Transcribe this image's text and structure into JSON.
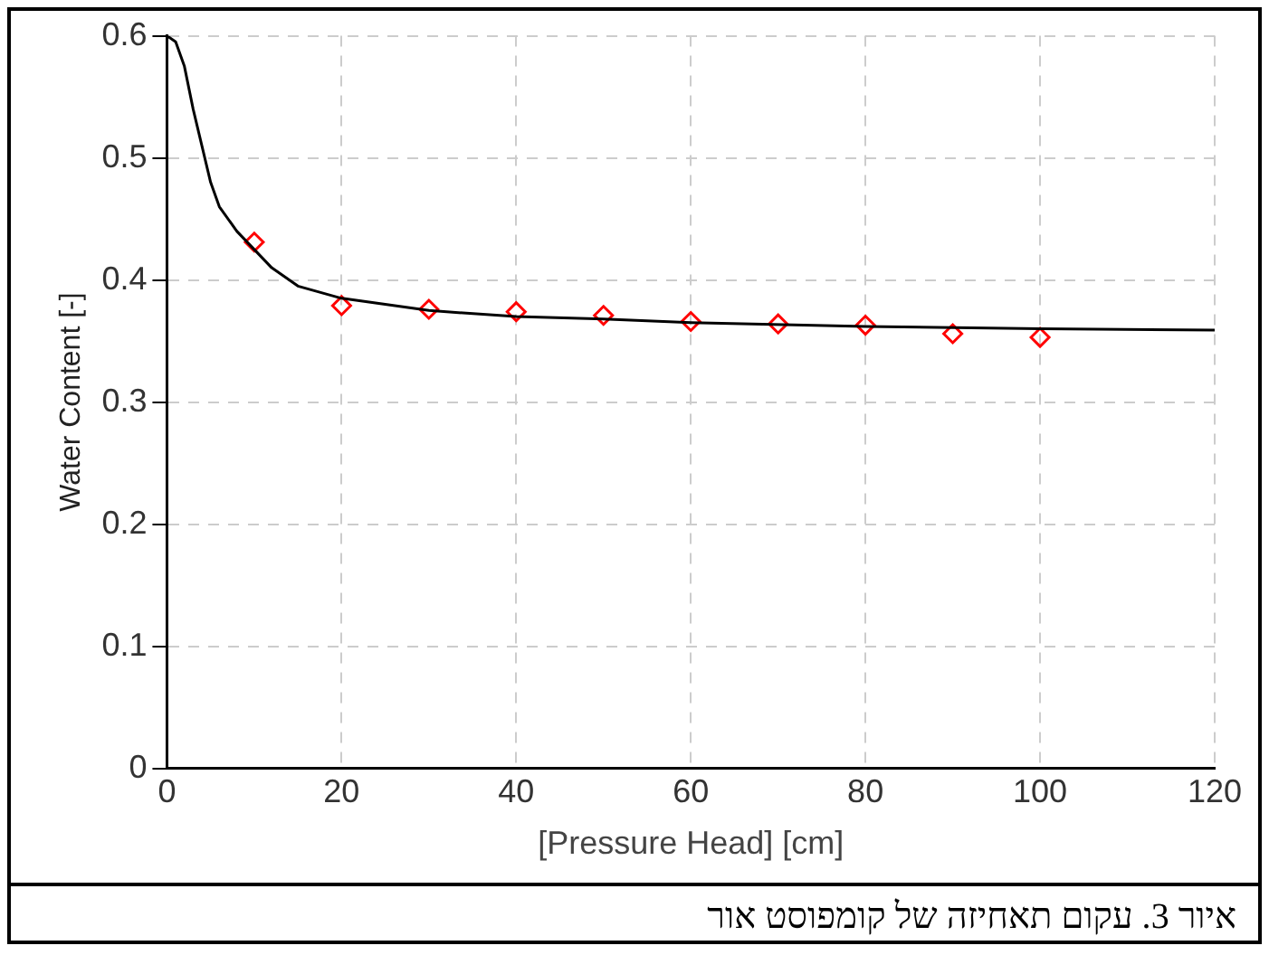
{
  "chart_data": {
    "type": "line",
    "xlabel": "[Pressure Head] [cm]",
    "ylabel": "Water Content [-]",
    "xlim": [
      0,
      120
    ],
    "xticks": [
      0,
      20,
      40,
      60,
      80,
      100,
      120
    ],
    "ylim": [
      0,
      0.6
    ],
    "yticks": [
      0,
      0.1,
      0.2,
      0.3,
      0.4,
      0.5,
      0.6
    ],
    "grid": true,
    "series": [
      {
        "type": "line",
        "color": "#000000",
        "marker": "none",
        "x": [
          0,
          1,
          2,
          3,
          4,
          5,
          6,
          8,
          10,
          12,
          15,
          20,
          25,
          30,
          40,
          50,
          60,
          80,
          100,
          120
        ],
        "values": [
          0.6,
          0.595,
          0.575,
          0.54,
          0.51,
          0.48,
          0.46,
          0.44,
          0.425,
          0.41,
          0.395,
          0.385,
          0.38,
          0.375,
          0.37,
          0.368,
          0.365,
          0.362,
          0.36,
          0.359
        ]
      },
      {
        "type": "scatter",
        "color": "#ff0000",
        "marker": "diamond",
        "x": [
          10,
          20,
          30,
          40,
          50,
          60,
          70,
          80,
          90,
          100
        ],
        "values": [
          0.431,
          0.379,
          0.376,
          0.374,
          0.371,
          0.366,
          0.364,
          0.363,
          0.356,
          0.353
        ]
      }
    ],
    "annotations": [
      "איור 3. עקום תאחיזה של קומפוסט אור"
    ]
  }
}
